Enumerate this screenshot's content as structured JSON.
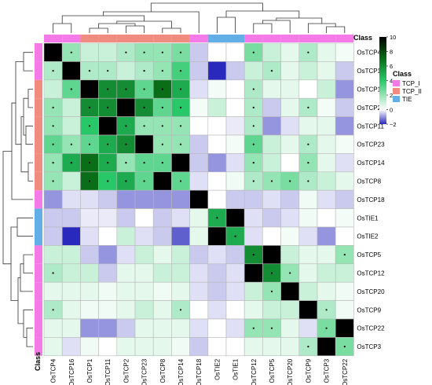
{
  "chart_data": {
    "type": "heatmap",
    "title": "",
    "genes": [
      "OsTCP4",
      "OsTCP16",
      "OsTCP1",
      "OsTCP11",
      "OsTCP2",
      "OsTCP23",
      "OsTCP8",
      "OsTCP14",
      "OsTCP18",
      "OsTIE2",
      "OsTIE1",
      "OsTCP12",
      "OsTCP5",
      "OsTCP20",
      "OsTCP9",
      "OsTCP3",
      "OsTCP22"
    ],
    "rows": [
      "OsTCP4",
      "OsTCP16",
      "OsTCP1",
      "OsTCP2",
      "OsTCP11",
      "OsTCP23",
      "OsTCP14",
      "OsTCP8",
      "OsTCP18",
      "OsTIE1",
      "OsTIE2",
      "OsTCP5",
      "OsTCP12",
      "OsTCP20",
      "OsTCP9",
      "OsTCP22",
      "OsTCP3"
    ],
    "class_of": {
      "OsTCP4": "TCP_I",
      "OsTCP16": "TCP_I",
      "OsTCP1": "TCP_II",
      "OsTCP11": "TCP_II",
      "OsTCP2": "TCP_II",
      "OsTCP23": "TCP_II",
      "OsTCP8": "TCP_II",
      "OsTCP14": "TCP_II",
      "OsTCP18": "TCP_I",
      "OsTIE2": "TIE",
      "OsTIE1": "TIE",
      "OsTCP12": "TCP_I",
      "OsTCP5": "TCP_I",
      "OsTCP20": "TCP_I",
      "OsTCP9": "TCP_I",
      "OsTCP3": "TCP_I",
      "OsTCP22": "TCP_I"
    },
    "values": [
      [
        10,
        2,
        1,
        1,
        1.5,
        2,
        2,
        2.5,
        -0.5,
        0,
        0,
        2.5,
        1,
        0.5,
        1.5,
        0.5,
        0.2
      ],
      [
        1.5,
        10,
        1.5,
        1.5,
        1,
        1.5,
        2,
        3.5,
        -0.5,
        -2,
        -0.5,
        1,
        1.5,
        0.5,
        1,
        0.5,
        -0.5
      ],
      [
        1,
        3,
        10,
        6,
        6,
        3,
        7,
        5,
        -0.3,
        0.2,
        0,
        1.5,
        0.5,
        0.5,
        0,
        1,
        -1
      ],
      [
        2,
        1,
        6,
        6,
        10,
        6,
        3,
        4,
        0.2,
        1,
        0,
        1.5,
        -0.5,
        0.5,
        1.5,
        0.2,
        -0.5
      ],
      [
        2,
        1,
        4,
        10,
        5,
        2,
        2,
        2,
        0,
        0,
        -0.2,
        1.5,
        -1,
        -0.3,
        0.5,
        0.5,
        -1
      ],
      [
        3,
        2,
        3,
        5,
        6,
        10,
        2,
        2,
        -0.5,
        0,
        0.2,
        3,
        1,
        0.5,
        1.5,
        0.5,
        0.2
      ],
      [
        2,
        5,
        7,
        5,
        2,
        3,
        3,
        10,
        -0.5,
        -1,
        -0.3,
        2,
        1,
        0,
        2,
        0.5,
        -0.3
      ],
      [
        2,
        1,
        7,
        4,
        5,
        3,
        10,
        3,
        -0.3,
        0,
        0.3,
        1.5,
        2,
        2.5,
        1.5,
        1,
        0.5
      ],
      [
        -1,
        -0.3,
        -0.3,
        -0.5,
        -1,
        -1,
        -1,
        -1,
        10,
        0,
        -0.5,
        -0.5,
        -0.3,
        -0.5,
        0.3,
        -0.3,
        -0.5
      ],
      [
        -0.5,
        -0.5,
        -0.2,
        -0.2,
        -0.5,
        0,
        -0.5,
        -0.3,
        0.5,
        5,
        10,
        -0.3,
        -0.5,
        -0.3,
        0.3,
        0,
        0.2
      ],
      [
        -0.5,
        -2,
        -0.3,
        0,
        1,
        -0.3,
        -0.5,
        -1.5,
        0.5,
        10,
        5,
        -0.3,
        0,
        0.2,
        -0.3,
        -1,
        0
      ],
      [
        1,
        1,
        -0.5,
        -1,
        -0.3,
        1,
        0.5,
        1,
        -0.5,
        -0.3,
        -0.5,
        6,
        10,
        1,
        0.5,
        0.5,
        2
      ],
      [
        1.5,
        1,
        1,
        -0.5,
        0.5,
        0.5,
        1,
        1,
        -0.3,
        -0.5,
        -0.3,
        10,
        6,
        2,
        0.5,
        1,
        1
      ],
      [
        0.5,
        0.5,
        0.5,
        0.3,
        0.5,
        0.5,
        0.3,
        0.5,
        -0.3,
        -0.5,
        -0.3,
        1,
        2,
        10,
        1,
        0.5,
        0.3
      ],
      [
        1.5,
        0.5,
        0.3,
        0.3,
        0.5,
        1,
        0.5,
        1.5,
        0,
        -0.3,
        0,
        0.5,
        1,
        1,
        10,
        1.5,
        0.3
      ],
      [
        0.5,
        0.5,
        -1,
        -1,
        -0.5,
        0.5,
        0.5,
        0.5,
        -0.3,
        0,
        -0.3,
        2,
        2,
        0.5,
        -0.3,
        2.5,
        10
      ],
      [
        0.5,
        -0.3,
        0.3,
        0,
        0.5,
        0.5,
        0.5,
        0.3,
        -0.5,
        0,
        0,
        0.5,
        0.5,
        0.5,
        1.5,
        10,
        2.5
      ]
    ],
    "colorbar": {
      "min": -2,
      "max": 10,
      "ticks": [
        10,
        8,
        6,
        4,
        2,
        0,
        -2
      ]
    },
    "legend": {
      "title": "Class",
      "position": "right",
      "entries": [
        {
          "label": "TCP_I",
          "color": "#f47ae8"
        },
        {
          "label": "TCP_II",
          "color": "#f08b80"
        },
        {
          "label": "TIE",
          "color": "#62aee6"
        }
      ]
    },
    "annotation_label": "Class",
    "axis_title": "Class",
    "grid": true
  }
}
